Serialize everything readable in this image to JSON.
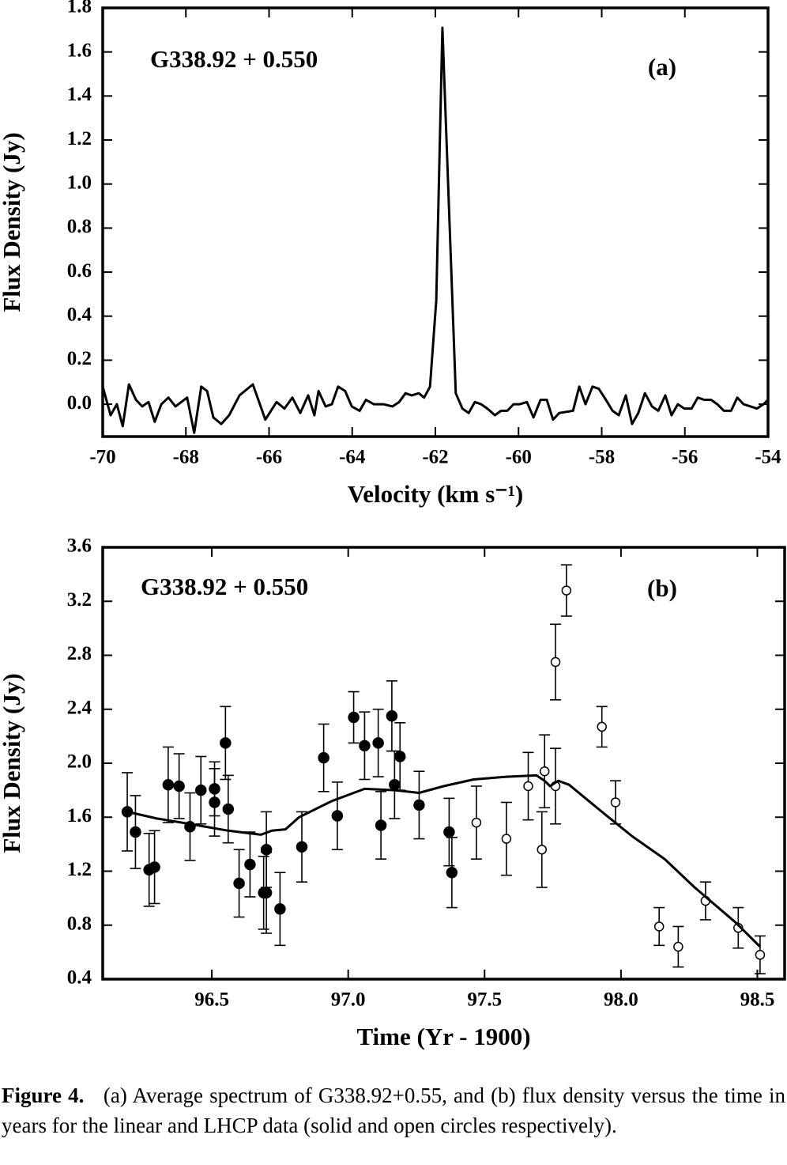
{
  "chart_data": [
    {
      "type": "line",
      "annotation": "G338.92 + 0.550",
      "panel": "(a)",
      "xlabel": "Velocity (km s⁻¹)",
      "ylabel": "Flux Density (Jy)",
      "xlim": [
        -70,
        -54
      ],
      "xticks": [
        -70,
        -68,
        -66,
        -64,
        -62,
        -60,
        -58,
        -56,
        -54
      ],
      "ylim": [
        -0.147,
        1.8
      ],
      "yticks": [
        {
          "value": 0,
          "label": "0.0"
        },
        0.2,
        0.4,
        0.6,
        0.8,
        {
          "value": 1,
          "label": "1.0"
        },
        1.2,
        1.4,
        1.6,
        1.8
      ],
      "color": "#000000",
      "x": [
        -70.0,
        -69.81,
        -69.66,
        -69.52,
        -69.37,
        -69.2,
        -69.05,
        -68.9,
        -68.75,
        -68.59,
        -68.42,
        -68.25,
        -67.97,
        -67.8,
        -67.63,
        -67.49,
        -67.34,
        -67.15,
        -66.96,
        -66.71,
        -66.39,
        -66.09,
        -65.82,
        -65.63,
        -65.44,
        -65.25,
        -65.06,
        -64.91,
        -64.81,
        -64.64,
        -64.49,
        -64.34,
        -64.17,
        -64.01,
        -63.82,
        -63.67,
        -63.48,
        -63.25,
        -63.03,
        -62.87,
        -62.72,
        -62.57,
        -62.4,
        -62.27,
        -62.13,
        -61.98,
        -61.83,
        -61.51,
        -61.35,
        -61.2,
        -61.05,
        -60.9,
        -60.75,
        -60.57,
        -60.42,
        -60.27,
        -60.12,
        -59.97,
        -59.8,
        -59.64,
        -59.47,
        -59.32,
        -59.17,
        -59.02,
        -58.69,
        -58.54,
        -58.39,
        -58.22,
        -58.07,
        -57.9,
        -57.74,
        -57.59,
        -57.42,
        -57.27,
        -57.12,
        -56.96,
        -56.79,
        -56.64,
        -56.47,
        -56.32,
        -56.17,
        -56.01,
        -55.84,
        -55.69,
        -55.54,
        -55.37,
        -55.22,
        -55.06,
        -54.89,
        -54.74,
        -54.59,
        -54.42,
        -54.27,
        -54.11,
        -54.0
      ],
      "values": [
        0.08,
        -0.05,
        0.0,
        -0.1,
        0.09,
        0.02,
        -0.01,
        0.01,
        -0.08,
        0.0,
        0.03,
        -0.01,
        0.03,
        -0.13,
        0.08,
        0.06,
        -0.06,
        -0.09,
        -0.05,
        0.04,
        0.09,
        -0.07,
        0.01,
        -0.02,
        0.03,
        -0.04,
        0.04,
        -0.05,
        0.06,
        -0.01,
        0.0,
        0.08,
        0.06,
        -0.01,
        -0.03,
        0.02,
        0.0,
        0.0,
        -0.01,
        0.01,
        0.05,
        0.04,
        0.05,
        0.03,
        0.08,
        0.47,
        1.71,
        0.05,
        -0.02,
        -0.04,
        0.01,
        0.0,
        -0.02,
        -0.05,
        -0.03,
        -0.03,
        0.0,
        0.0,
        0.01,
        -0.06,
        0.02,
        0.02,
        -0.07,
        -0.04,
        -0.03,
        0.08,
        0.0,
        0.08,
        0.07,
        0.02,
        -0.03,
        -0.05,
        0.04,
        -0.09,
        -0.04,
        0.05,
        -0.01,
        -0.03,
        0.04,
        -0.05,
        0.0,
        -0.02,
        -0.02,
        0.03,
        0.02,
        0.02,
        0.0,
        -0.03,
        -0.03,
        0.03,
        0.0,
        -0.01,
        -0.02,
        0.0,
        0.02
      ]
    },
    {
      "type": "scatter",
      "annotation": "G338.92 + 0.550",
      "panel": "(b)",
      "xlabel": "Time (Yr - 1900)",
      "ylabel": "Flux Density (Jy)",
      "xlim": [
        96.1,
        98.6
      ],
      "xticks": [
        96.5,
        {
          "value": 97,
          "label": "97.0"
        },
        97.5,
        {
          "value": 98,
          "label": "98.0"
        },
        98.5
      ],
      "ylim": [
        0.4,
        3.6
      ],
      "yticks": [
        0.4,
        0.8,
        1.2,
        1.6,
        {
          "value": 2,
          "label": "2.0"
        },
        2.4,
        2.8,
        3.2,
        3.6
      ],
      "series": [
        {
          "type": "scatter",
          "marker": "filled",
          "color": "#000000",
          "x": [
            96.19,
            96.22,
            96.27,
            96.29,
            96.34,
            96.38,
            96.42,
            96.46,
            96.51,
            96.51,
            96.55,
            96.56,
            96.6,
            96.64,
            96.69,
            96.7,
            96.7,
            96.75,
            96.83,
            96.91,
            96.96,
            97.02,
            97.06,
            97.11,
            97.12,
            97.16,
            97.17,
            97.19,
            97.26,
            97.37,
            97.38
          ],
          "values": [
            1.64,
            1.49,
            1.21,
            1.23,
            1.84,
            1.83,
            1.53,
            1.8,
            1.71,
            1.81,
            2.15,
            1.66,
            1.11,
            1.25,
            1.04,
            1.36,
            1.04,
            0.92,
            1.38,
            2.04,
            1.61,
            2.34,
            2.13,
            2.15,
            1.54,
            2.35,
            1.84,
            2.05,
            1.69,
            1.49,
            1.19
          ],
          "error": [
            0.29,
            0.27,
            0.27,
            0.27,
            0.28,
            0.24,
            0.25,
            0.25,
            0.25,
            0.2,
            0.27,
            0.25,
            0.25,
            0.24,
            0.27,
            0.28,
            0.3,
            0.27,
            0.26,
            0.25,
            0.25,
            0.19,
            0.25,
            0.25,
            0.25,
            0.26,
            0.25,
            0.25,
            0.25,
            0.25,
            0.26
          ]
        },
        {
          "type": "scatter",
          "marker": "open",
          "color": "#000000",
          "x": [
            97.47,
            97.58,
            97.66,
            97.71,
            97.72,
            97.76,
            97.76,
            97.8,
            97.93,
            97.98,
            98.14,
            98.21,
            98.31,
            98.43,
            98.51
          ],
          "values": [
            1.56,
            1.44,
            1.83,
            1.36,
            1.94,
            2.75,
            1.83,
            3.28,
            2.27,
            1.71,
            0.79,
            0.64,
            0.98,
            0.78,
            0.58
          ],
          "error": [
            0.27,
            0.27,
            0.25,
            0.28,
            0.27,
            0.28,
            0.28,
            0.19,
            0.15,
            0.16,
            0.14,
            0.15,
            0.14,
            0.15,
            0.14
          ]
        },
        {
          "type": "line",
          "color": "#000000",
          "x": [
            96.19,
            96.3,
            96.42,
            96.56,
            96.68,
            96.72,
            96.77,
            96.82,
            96.94,
            97.06,
            97.17,
            97.26,
            97.35,
            97.46,
            97.58,
            97.69,
            97.72,
            97.74,
            97.77,
            97.81,
            97.93,
            98.04,
            98.16,
            98.27,
            98.42,
            98.51
          ],
          "values": [
            1.64,
            1.59,
            1.55,
            1.5,
            1.47,
            1.5,
            1.51,
            1.6,
            1.72,
            1.81,
            1.8,
            1.78,
            1.83,
            1.88,
            1.9,
            1.91,
            1.87,
            1.83,
            1.87,
            1.84,
            1.64,
            1.46,
            1.29,
            1.08,
            0.82,
            0.64
          ]
        }
      ]
    }
  ],
  "caption": {
    "label": "Figure 4.",
    "text": "(a) Average spectrum of G338.92+0.55, and (b) flux density versus the time in years for the linear and LHCP data (solid and open circles respectively)."
  }
}
